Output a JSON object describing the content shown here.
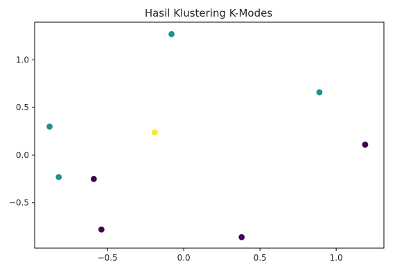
{
  "chart_data": {
    "type": "scatter",
    "title": "Hasil Klustering K-Modes",
    "xlabel": "",
    "ylabel": "",
    "xlim": [
      -0.978,
      1.313
    ],
    "ylim": [
      -0.975,
      1.395
    ],
    "x_ticks": [
      -0.5,
      0.0,
      0.5,
      1.0
    ],
    "x_tick_labels": [
      "−0.5",
      "0.0",
      "0.5",
      "1.0"
    ],
    "y_ticks": [
      -0.5,
      0.0,
      0.5,
      1.0
    ],
    "y_tick_labels": [
      "−0.5",
      "0.0",
      "0.5",
      "1.0"
    ],
    "grid": false,
    "cluster_colors": [
      "#440154",
      "#21918c",
      "#fde725"
    ],
    "points": [
      {
        "x": -0.08,
        "y": 1.27,
        "cluster": 1
      },
      {
        "x": 0.89,
        "y": 0.66,
        "cluster": 1
      },
      {
        "x": -0.88,
        "y": 0.3,
        "cluster": 1
      },
      {
        "x": -0.82,
        "y": -0.23,
        "cluster": 1
      },
      {
        "x": -0.19,
        "y": 0.24,
        "cluster": 2
      },
      {
        "x": 1.19,
        "y": 0.11,
        "cluster": 0
      },
      {
        "x": -0.59,
        "y": -0.25,
        "cluster": 0
      },
      {
        "x": -0.54,
        "y": -0.78,
        "cluster": 0
      },
      {
        "x": 0.38,
        "y": -0.86,
        "cluster": 0
      }
    ]
  }
}
